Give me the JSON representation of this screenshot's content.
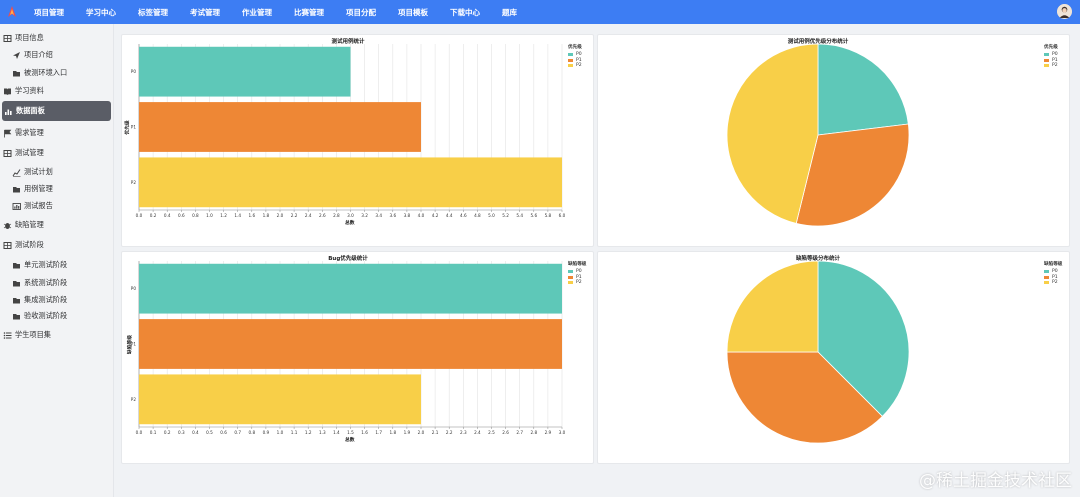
{
  "nav": {
    "items": [
      "项目管理",
      "学习中心",
      "标签管理",
      "考试管理",
      "作业管理",
      "比赛管理",
      "项目分配",
      "项目模板",
      "下载中心",
      "题库"
    ]
  },
  "sidebar": {
    "items": [
      {
        "label": "项目信息",
        "icon": "grid-icon",
        "level": "group"
      },
      {
        "label": "项目介绍",
        "icon": "send-icon",
        "level": "sub"
      },
      {
        "label": "被测环境入口",
        "icon": "folder-icon",
        "level": "sub"
      },
      {
        "label": "学习资料",
        "icon": "book-icon",
        "level": "group"
      },
      {
        "label": "数据面板",
        "icon": "bar-chart-icon",
        "level": "group",
        "active": true
      },
      {
        "label": "需求管理",
        "icon": "flag-icon",
        "level": "group"
      },
      {
        "label": "测试管理",
        "icon": "grid-icon",
        "level": "group"
      },
      {
        "label": "测试计划",
        "icon": "line-chart-icon",
        "level": "sub"
      },
      {
        "label": "用例管理",
        "icon": "folder-icon",
        "level": "sub"
      },
      {
        "label": "测试报告",
        "icon": "chart-box-icon",
        "level": "sub"
      },
      {
        "label": "缺陷管理",
        "icon": "bug-icon",
        "level": "group"
      },
      {
        "label": "测试阶段",
        "icon": "grid-icon",
        "level": "group"
      },
      {
        "label": "单元测试阶段",
        "icon": "folder-icon",
        "level": "sub"
      },
      {
        "label": "系统测试阶段",
        "icon": "folder-icon",
        "level": "sub"
      },
      {
        "label": "集成测试阶段",
        "icon": "folder-icon",
        "level": "sub"
      },
      {
        "label": "验收测试阶段",
        "icon": "folder-icon",
        "level": "sub"
      },
      {
        "label": "学生项目集",
        "icon": "list-icon",
        "level": "group"
      }
    ]
  },
  "colors": {
    "P0": "#5ec8b8",
    "P1": "#ee8735",
    "P2": "#f8cf48",
    "nav_bg": "#3d7df3"
  },
  "watermark": "@稀土掘金技术社区",
  "chart_data": [
    {
      "type": "bar",
      "orientation": "horizontal",
      "title": "测试用例统计",
      "categories": [
        "P0",
        "P1",
        "P2"
      ],
      "values": [
        3.0,
        4.0,
        6.0
      ],
      "colors": [
        "#5ec8b8",
        "#ee8735",
        "#f8cf48"
      ],
      "xlabel": "总数",
      "ylabel": "优先级",
      "xlim": [
        0,
        6.0
      ],
      "xticks": [
        "0.0",
        "0.2",
        "0.4",
        "0.6",
        "0.8",
        "1.0",
        "1.2",
        "1.4",
        "1.6",
        "1.8",
        "2.0",
        "2.2",
        "2.4",
        "2.6",
        "2.8",
        "3.0",
        "3.2",
        "3.4",
        "3.6",
        "3.8",
        "4.0",
        "4.2",
        "4.4",
        "4.6",
        "4.8",
        "5.0",
        "5.2",
        "5.4",
        "5.6",
        "5.8",
        "6.0"
      ],
      "legend": {
        "title": "优先级",
        "entries": [
          "P0",
          "P1",
          "P2"
        ],
        "position": "top-right"
      },
      "grid": true
    },
    {
      "type": "pie",
      "title": "测试用例优先级分布统计",
      "categories": [
        "P0",
        "P1",
        "P2"
      ],
      "values": [
        3,
        4,
        6
      ],
      "colors": [
        "#5ec8b8",
        "#ee8735",
        "#f8cf48"
      ],
      "legend": {
        "title": "优先级",
        "entries": [
          "P0",
          "P1",
          "P2"
        ],
        "position": "top-right"
      }
    },
    {
      "type": "bar",
      "orientation": "horizontal",
      "title": "Bug优先级统计",
      "categories": [
        "P0",
        "P1",
        "P2"
      ],
      "values": [
        3.0,
        3.0,
        2.0
      ],
      "colors": [
        "#5ec8b8",
        "#ee8735",
        "#f8cf48"
      ],
      "xlabel": "总数",
      "ylabel": "缺陷等级",
      "xlim": [
        0,
        3.0
      ],
      "xticks": [
        "0.0",
        "0.1",
        "0.2",
        "0.3",
        "0.4",
        "0.5",
        "0.6",
        "0.7",
        "0.8",
        "0.9",
        "1.0",
        "1.1",
        "1.2",
        "1.3",
        "1.4",
        "1.5",
        "1.6",
        "1.7",
        "1.8",
        "1.9",
        "2.0",
        "2.1",
        "2.2",
        "2.3",
        "2.4",
        "2.5",
        "2.6",
        "2.7",
        "2.8",
        "2.9",
        "3.0"
      ],
      "legend": {
        "title": "缺陷等级",
        "entries": [
          "P0",
          "P1",
          "P2"
        ],
        "position": "top-right"
      },
      "grid": true
    },
    {
      "type": "pie",
      "title": "缺陷等级分布统计",
      "categories": [
        "P0",
        "P1",
        "P2"
      ],
      "values": [
        3,
        3,
        2
      ],
      "colors": [
        "#5ec8b8",
        "#ee8735",
        "#f8cf48"
      ],
      "legend": {
        "title": "缺陷等级",
        "entries": [
          "P0",
          "P1",
          "P2"
        ],
        "position": "top-right"
      }
    }
  ]
}
